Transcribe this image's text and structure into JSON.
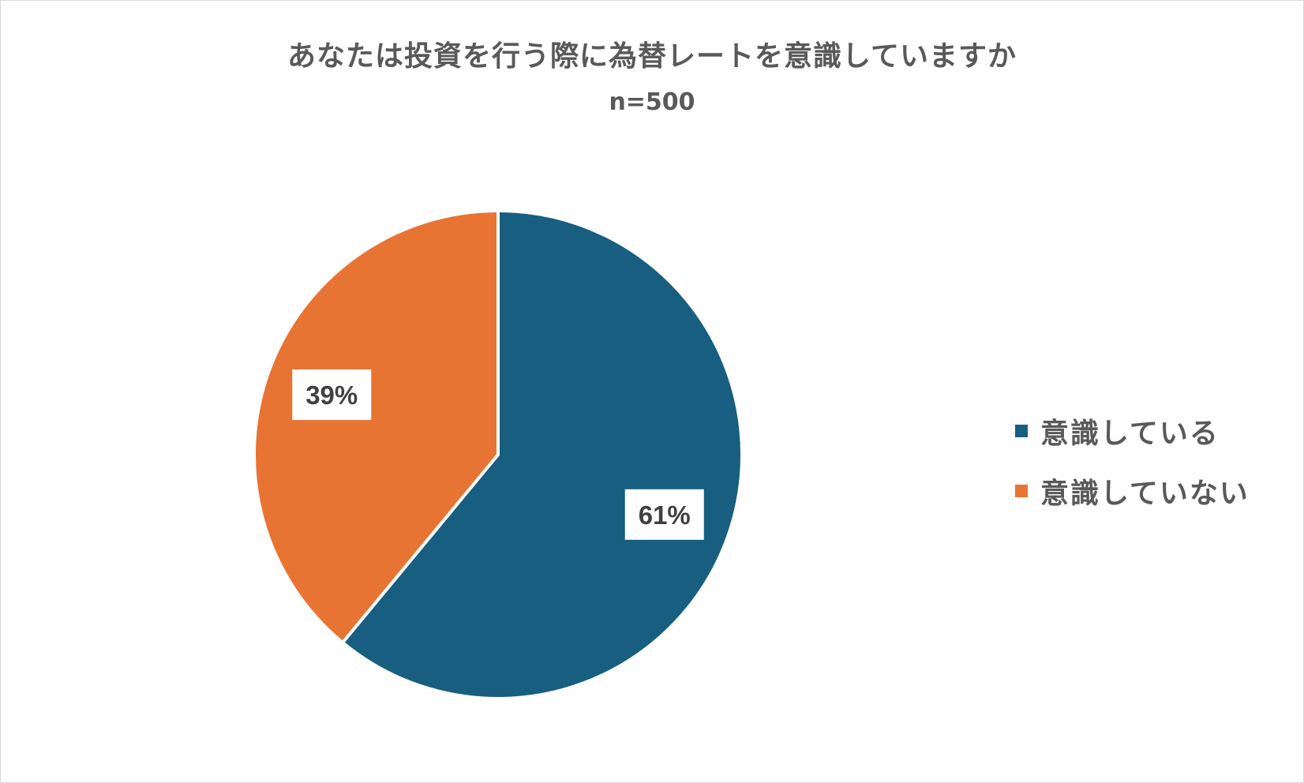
{
  "chart_data": {
    "type": "pie",
    "title": "あなたは投資を行う際に為替レートを意識していますか",
    "subtitle": "n=500",
    "categories": [
      "意識している",
      "意識していない"
    ],
    "values": [
      61,
      39
    ],
    "labels": [
      "61%",
      "39%"
    ],
    "colors": [
      "#175e80",
      "#e87434"
    ],
    "legend_position": "right",
    "start_angle": "12 o'clock, clockwise"
  }
}
